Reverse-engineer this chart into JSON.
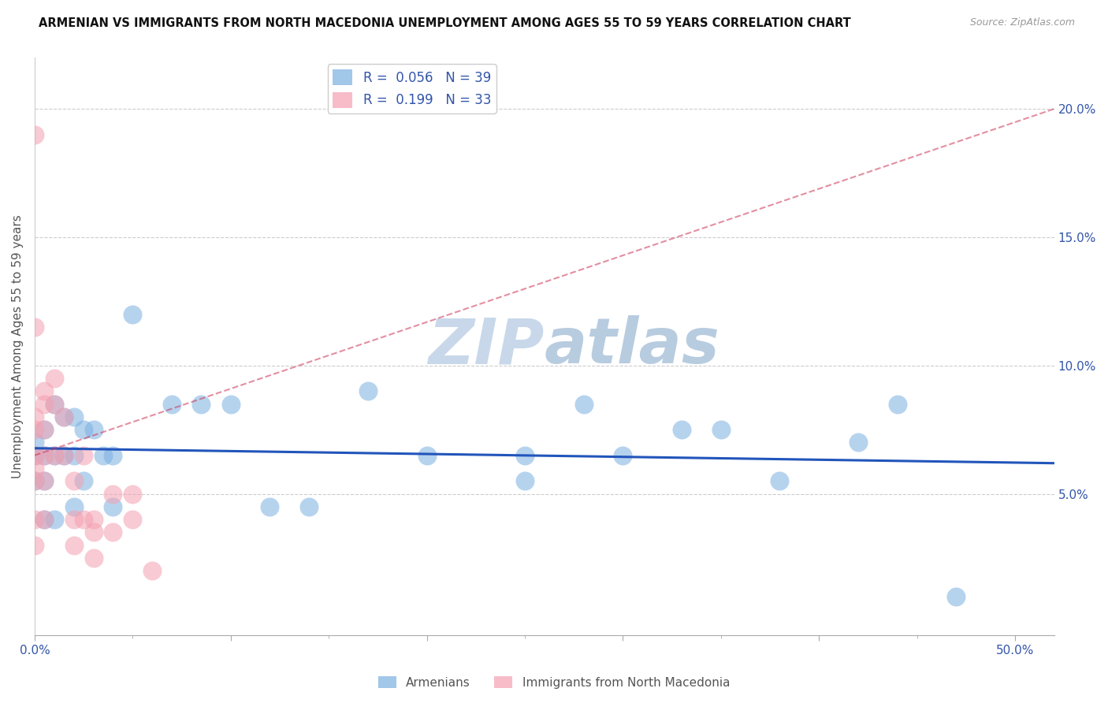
{
  "title": "ARMENIAN VS IMMIGRANTS FROM NORTH MACEDONIA UNEMPLOYMENT AMONG AGES 55 TO 59 YEARS CORRELATION CHART",
  "source": "Source: ZipAtlas.com",
  "ylabel": "Unemployment Among Ages 55 to 59 years",
  "xlim": [
    0.0,
    0.52
  ],
  "ylim": [
    -0.005,
    0.22
  ],
  "ylabel_vals": [
    0.05,
    0.1,
    0.15,
    0.2
  ],
  "ylabel_ticks_right": [
    "5.0%",
    "10.0%",
    "15.0%",
    "20.0%"
  ],
  "color_armenian": "#7ab0e0",
  "color_macedonia": "#f4a0b0",
  "trendline_armenian_color": "#2255bb",
  "trendline_macedonia_color": "#cc3355",
  "watermark_color": "#c8d8ea",
  "background": "#ffffff",
  "armenian_x": [
    0.0,
    0.0,
    0.0,
    0.005,
    0.005,
    0.005,
    0.005,
    0.01,
    0.01,
    0.01,
    0.015,
    0.015,
    0.02,
    0.02,
    0.02,
    0.025,
    0.025,
    0.03,
    0.035,
    0.04,
    0.04,
    0.05,
    0.07,
    0.085,
    0.1,
    0.12,
    0.14,
    0.17,
    0.2,
    0.25,
    0.28,
    0.33,
    0.38,
    0.44,
    0.47,
    0.25,
    0.3,
    0.35,
    0.42
  ],
  "armenian_y": [
    0.065,
    0.07,
    0.055,
    0.065,
    0.055,
    0.04,
    0.075,
    0.085,
    0.065,
    0.04,
    0.08,
    0.065,
    0.08,
    0.065,
    0.045,
    0.075,
    0.055,
    0.075,
    0.065,
    0.065,
    0.045,
    0.12,
    0.085,
    0.085,
    0.085,
    0.045,
    0.045,
    0.09,
    0.065,
    0.065,
    0.085,
    0.075,
    0.055,
    0.085,
    0.01,
    0.055,
    0.065,
    0.075,
    0.07
  ],
  "macedonia_x": [
    0.0,
    0.0,
    0.0,
    0.0,
    0.0,
    0.0,
    0.0,
    0.0,
    0.0,
    0.005,
    0.005,
    0.005,
    0.005,
    0.005,
    0.005,
    0.01,
    0.01,
    0.01,
    0.015,
    0.015,
    0.02,
    0.02,
    0.02,
    0.025,
    0.025,
    0.03,
    0.03,
    0.03,
    0.04,
    0.04,
    0.05,
    0.05,
    0.06
  ],
  "macedonia_y": [
    0.19,
    0.115,
    0.08,
    0.075,
    0.065,
    0.06,
    0.055,
    0.04,
    0.03,
    0.09,
    0.085,
    0.075,
    0.065,
    0.055,
    0.04,
    0.095,
    0.085,
    0.065,
    0.08,
    0.065,
    0.055,
    0.04,
    0.03,
    0.065,
    0.04,
    0.04,
    0.035,
    0.025,
    0.05,
    0.035,
    0.05,
    0.04,
    0.02
  ]
}
